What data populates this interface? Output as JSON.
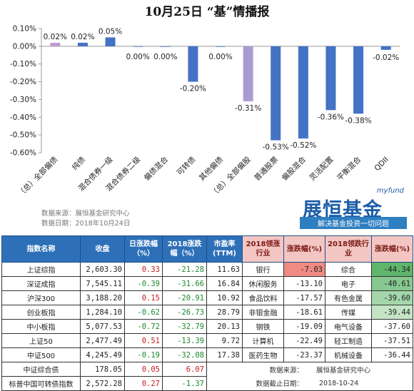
{
  "title": "10月25日 “基”情播报",
  "chart_data": {
    "type": "bar",
    "categories": [
      "（总）全部偏债",
      "纯债",
      "混合债券一级",
      "混合债券二级",
      "偏债混合",
      "可转债",
      "其他偏债",
      "（总）全部偏股",
      "普通股票",
      "偏股混合",
      "灵活配置",
      "平衡混合",
      "QDII"
    ],
    "values": [
      0.02,
      0.02,
      0.05,
      0.0,
      0.0,
      -0.2,
      0.0,
      -0.31,
      -0.53,
      -0.52,
      -0.36,
      -0.38,
      -0.02
    ],
    "value_labels": [
      "0.02%",
      "0.02%",
      "0.05%",
      "0.00%",
      "0.00%",
      "-0.20%",
      "0.00%",
      "-0.31%",
      "-0.53%",
      "-0.52%",
      "-0.36%",
      "-0.38%",
      "-0.02%"
    ],
    "ylim": [
      -0.6,
      0.1
    ],
    "yticks": [
      0.1,
      0.0,
      -0.1,
      -0.2,
      -0.3,
      -0.4,
      -0.5,
      -0.6
    ],
    "ytick_labels": [
      "0.10%",
      "0.00%",
      "-0.10%",
      "-0.20%",
      "-0.30%",
      "-0.40%",
      "-0.50%",
      "-0.60%"
    ],
    "colors": {
      "bond": "#4473c4",
      "equity": "#4473c4",
      "special": "#a99bd0",
      "qdii": "#4473c4"
    },
    "bar_colors": [
      "#c39bd3",
      "#4472c4",
      "#4472c4",
      "#4472c4",
      "#4472c4",
      "#4472c4",
      "#4472c4",
      "#a99bd0",
      "#4472c4",
      "#4472c4",
      "#4472c4",
      "#4472c4",
      "#4472c4"
    ],
    "grid": false
  },
  "source_lines": [
    "数据来源：展恒基金研究中心",
    "数据日期：2018年10月24日"
  ],
  "logo": {
    "main": "展恒基金",
    "en": "myfund",
    "slogan": "解决基金投资一切问题"
  },
  "table": {
    "headers": [
      "指数名称",
      "收盘",
      "日涨跌幅（%）",
      "2018涨跌幅（%）",
      "市盈率(TTM)",
      "2018领涨行业",
      "涨跌幅(%)",
      "2018领跌行业",
      "涨跌幅(%)"
    ],
    "rows": [
      {
        "name": "上证综指",
        "close": "2,603.30",
        "day": "0.33",
        "ytd": "-21.28",
        "pe": "11.63",
        "up_ind": "银行",
        "up_pct": "-7.03",
        "down_ind": "综合",
        "down_pct": "-44.34"
      },
      {
        "name": "深证成指",
        "close": "7,545.11",
        "day": "-0.39",
        "ytd": "-31.66",
        "pe": "16.84",
        "up_ind": "休闲服务",
        "up_pct": "-13.10",
        "down_ind": "电子",
        "down_pct": "-40.61"
      },
      {
        "name": "沪深300",
        "close": "3,188.20",
        "day": "0.15",
        "ytd": "-20.91",
        "pe": "10.92",
        "up_ind": "食品饮料",
        "up_pct": "-17.57",
        "down_ind": "有色金属",
        "down_pct": "-39.60"
      },
      {
        "name": "创业板指",
        "close": "1,284.10",
        "day": "-0.62",
        "ytd": "-26.73",
        "pe": "28.79",
        "up_ind": "非银金融",
        "up_pct": "-18.61",
        "down_ind": "传媒",
        "down_pct": "-39.44"
      },
      {
        "name": "中小板指",
        "close": "5,077.53",
        "day": "-0.72",
        "ytd": "-32.79",
        "pe": "20.13",
        "up_ind": "钢铁",
        "up_pct": "-19.09",
        "down_ind": "电气设备",
        "down_pct": "-37.60"
      },
      {
        "name": "上证50",
        "close": "2,477.49",
        "day": "0.51",
        "ytd": "-13.39",
        "pe": "9.72",
        "up_ind": "计算机",
        "up_pct": "-22.49",
        "down_ind": "轻工制造",
        "down_pct": "-37.51"
      },
      {
        "name": "中证500",
        "close": "4,245.49",
        "day": "-0.19",
        "ytd": "-32.08",
        "pe": "17.38",
        "up_ind": "医药生物",
        "up_pct": "-23.37",
        "down_ind": "机械设备",
        "down_pct": "-36.44"
      },
      {
        "name": "中证综合债",
        "close": "178.05",
        "day": "0.05",
        "ytd": "6.07"
      },
      {
        "name": "标普中国可转债指数",
        "close": "2,572.28",
        "day": "0.27",
        "ytd": "-1.37"
      }
    ],
    "footer": {
      "source": "数据来源：",
      "source_val": "展恒基金研究中心",
      "date": "数据截止日期：",
      "date_val": "2018-10-24"
    }
  }
}
